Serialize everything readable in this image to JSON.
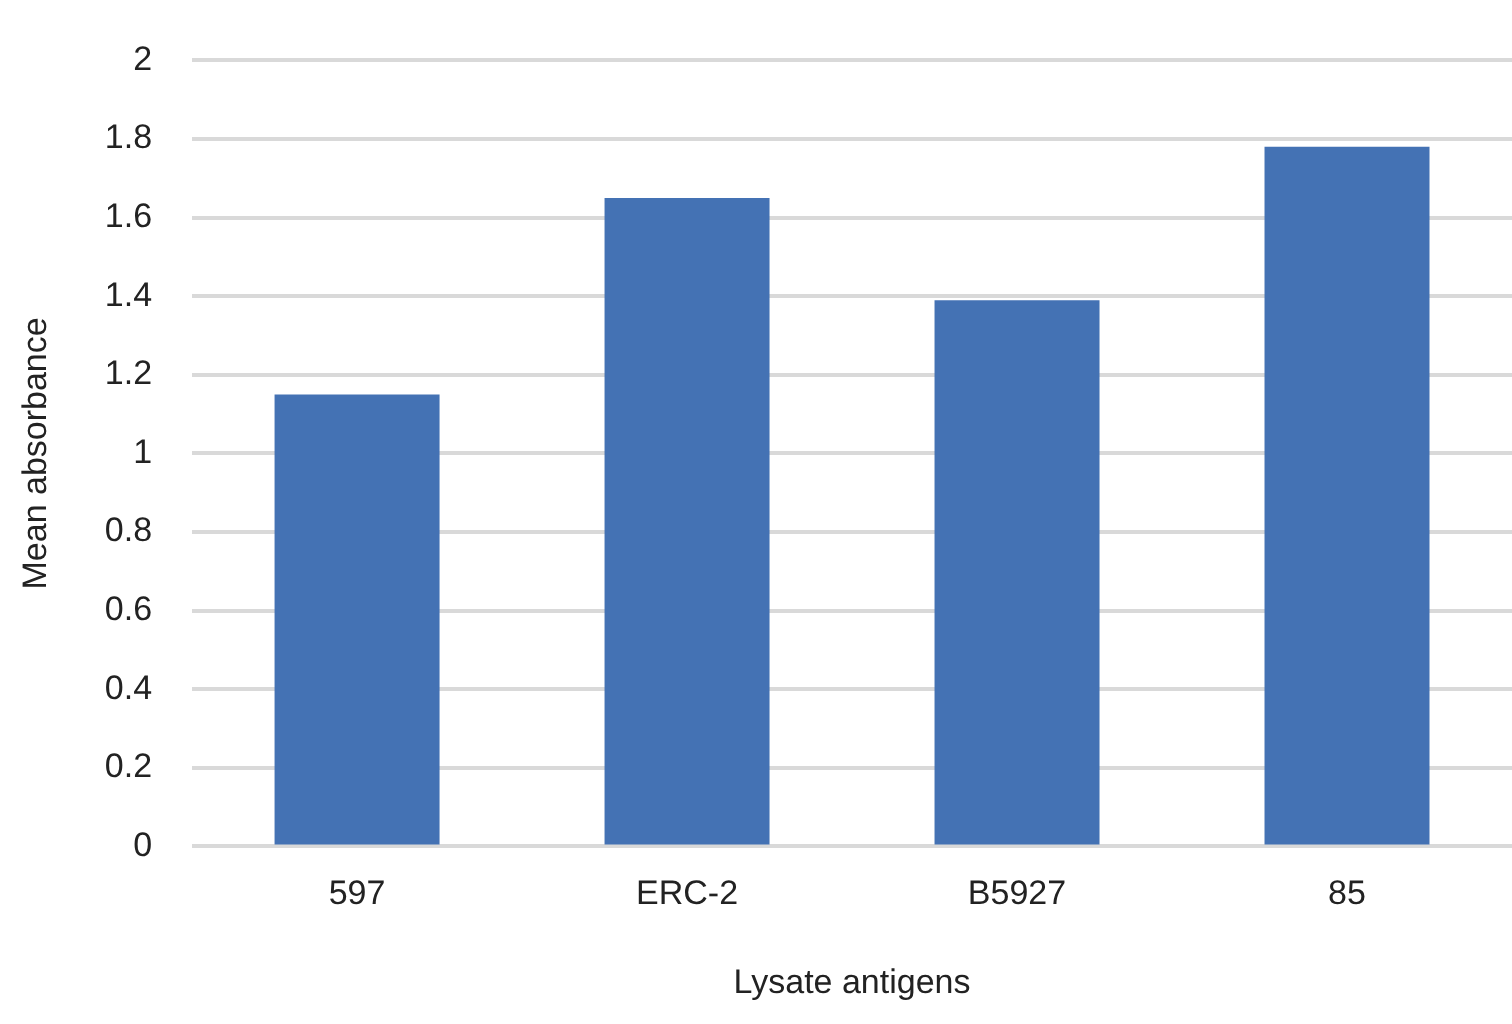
{
  "chart_data": {
    "type": "bar",
    "xlabel": "Lysate antigens",
    "ylabel": "Mean absorbance",
    "categories": [
      "597",
      "ERC-2",
      "B5927",
      "85"
    ],
    "values": [
      1.15,
      1.65,
      1.39,
      1.78
    ],
    "color": "#4472b4",
    "ylim": [
      0,
      2
    ],
    "yticks": [
      0,
      0.2,
      0.4,
      0.6,
      0.8,
      1,
      1.2,
      1.4,
      1.6,
      1.8,
      2
    ],
    "grid": "y"
  }
}
